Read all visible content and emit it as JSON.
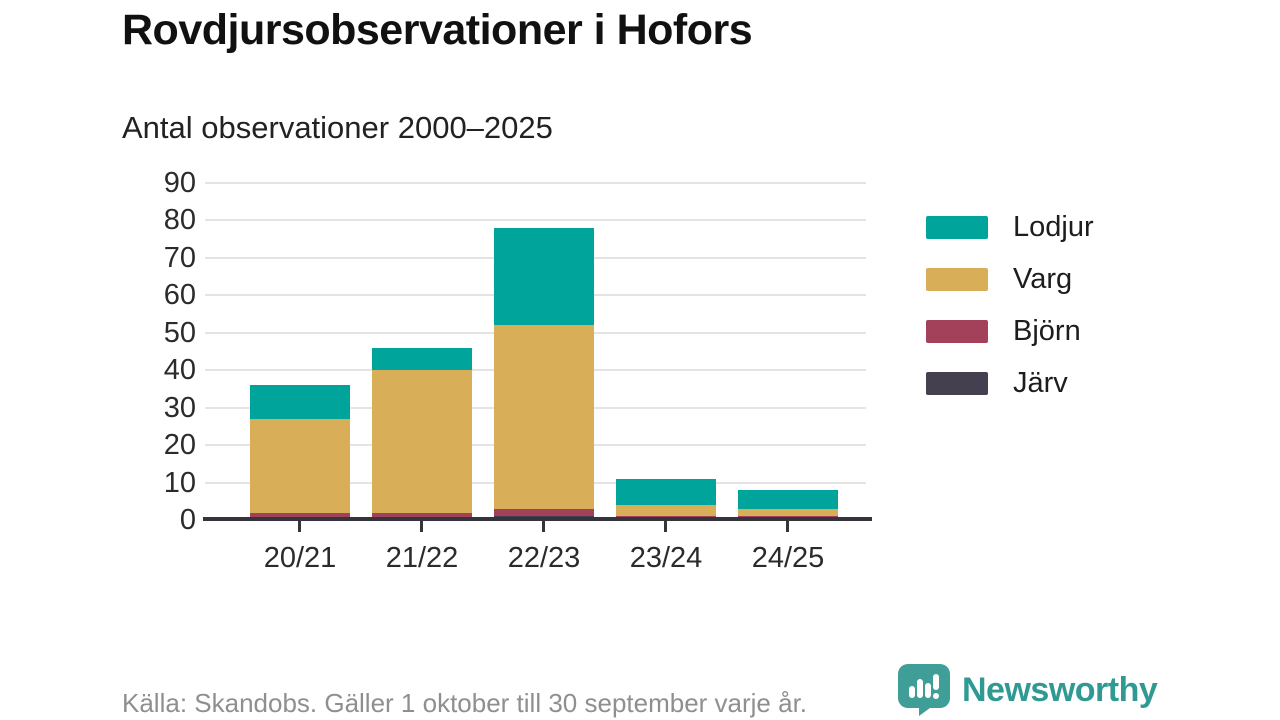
{
  "header": {
    "title": "Rovdjursobservationer i Hofors",
    "subtitle": "Antal observationer 2000–2025"
  },
  "footer": {
    "source": "Källa: Skandobs. Gäller 1 oktober till 30 september varje år.",
    "brand": "Newsworthy"
  },
  "colors": {
    "lodjur": "#00a49a",
    "varg": "#d9ae58",
    "bjorn": "#a24159",
    "jarv": "#444050",
    "axis": "#35333c",
    "grid": "#e4e4e4",
    "brand_teal": "#3f9e97",
    "brand_text": "#2f9a93"
  },
  "chart_data": {
    "type": "bar",
    "stacked": true,
    "title": "Rovdjursobservationer i Hofors",
    "subtitle": "Antal observationer 2000–2025",
    "categories": [
      "20/21",
      "21/22",
      "22/23",
      "23/24",
      "24/25"
    ],
    "series": [
      {
        "name": "Järv",
        "color": "#444050",
        "values": [
          0,
          0,
          1,
          0,
          0
        ]
      },
      {
        "name": "Björn",
        "color": "#a24159",
        "values": [
          2,
          2,
          2,
          1,
          1
        ]
      },
      {
        "name": "Varg",
        "color": "#d9ae58",
        "values": [
          25,
          38,
          49,
          3,
          2
        ]
      },
      {
        "name": "Lodjur",
        "color": "#00a49a",
        "values": [
          9,
          6,
          26,
          7,
          5
        ]
      }
    ],
    "totals": [
      36,
      46,
      78,
      11,
      8
    ],
    "legend_order_top_to_bottom": [
      "Lodjur",
      "Varg",
      "Björn",
      "Järv"
    ],
    "legend_position": "right",
    "ylim": [
      0,
      90
    ],
    "yticks": [
      0,
      10,
      20,
      30,
      40,
      50,
      60,
      70,
      80,
      90
    ],
    "grid": true,
    "xlabel": "",
    "ylabel": ""
  }
}
